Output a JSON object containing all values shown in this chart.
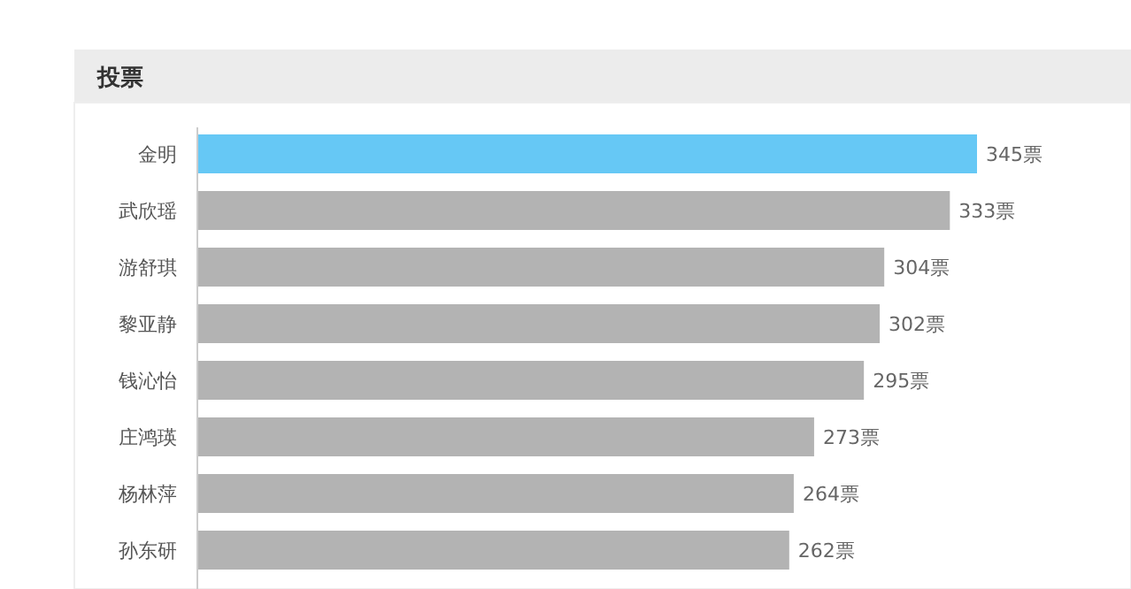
{
  "chart_data": {
    "type": "bar",
    "orientation": "horizontal",
    "title": "投票",
    "categories": [
      "金明",
      "武欣瑶",
      "游舒琪",
      "黎亚静",
      "钱沁怡",
      "庄鸿瑛",
      "杨林萍",
      "孙东研"
    ],
    "values": [
      345,
      333,
      304,
      302,
      295,
      273,
      264,
      262
    ],
    "colors": [
      "#66c8f5",
      "#b3b3b3",
      "#b3b3b3",
      "#b3b3b3",
      "#b3b3b3",
      "#b3b3b3",
      "#b3b3b3",
      "#b3b3b3"
    ],
    "value_labels": [
      "345票",
      "333票",
      "304票",
      "302票",
      "295票",
      "273票",
      "264票",
      "262票"
    ]
  }
}
